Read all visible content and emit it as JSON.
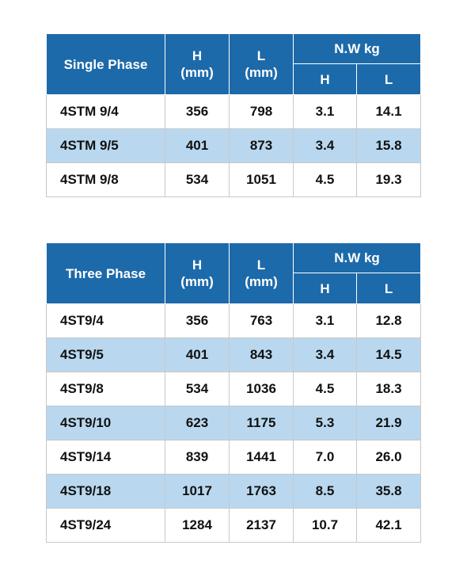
{
  "tables": [
    {
      "header": {
        "label": "Single Phase",
        "h": "H",
        "h_unit": "(mm)",
        "l": "L",
        "l_unit": "(mm)",
        "nw": "N.W kg",
        "nw_h": "H",
        "nw_l": "L"
      },
      "rows": [
        [
          "4STM 9/4",
          "356",
          "798",
          "3.1",
          "14.1"
        ],
        [
          "4STM 9/5",
          "401",
          "873",
          "3.4",
          "15.8"
        ],
        [
          "4STM 9/8",
          "534",
          "1051",
          "4.5",
          "19.3"
        ]
      ]
    },
    {
      "header": {
        "label": "Three Phase",
        "h": "H",
        "h_unit": "(mm)",
        "l": "L",
        "l_unit": "(mm)",
        "nw": "N.W kg",
        "nw_h": "H",
        "nw_l": "L"
      },
      "rows": [
        [
          "4ST9/4",
          "356",
          "763",
          "3.1",
          "12.8"
        ],
        [
          "4ST9/5",
          "401",
          "843",
          "3.4",
          "14.5"
        ],
        [
          "4ST9/8",
          "534",
          "1036",
          "4.5",
          "18.3"
        ],
        [
          "4ST9/10",
          "623",
          "1175",
          "5.3",
          "21.9"
        ],
        [
          "4ST9/14",
          "839",
          "1441",
          "7.0",
          "26.0"
        ],
        [
          "4ST9/18",
          "1017",
          "1763",
          "8.5",
          "35.8"
        ],
        [
          "4ST9/24",
          "1284",
          "2137",
          "10.7",
          "42.1"
        ]
      ]
    }
  ]
}
